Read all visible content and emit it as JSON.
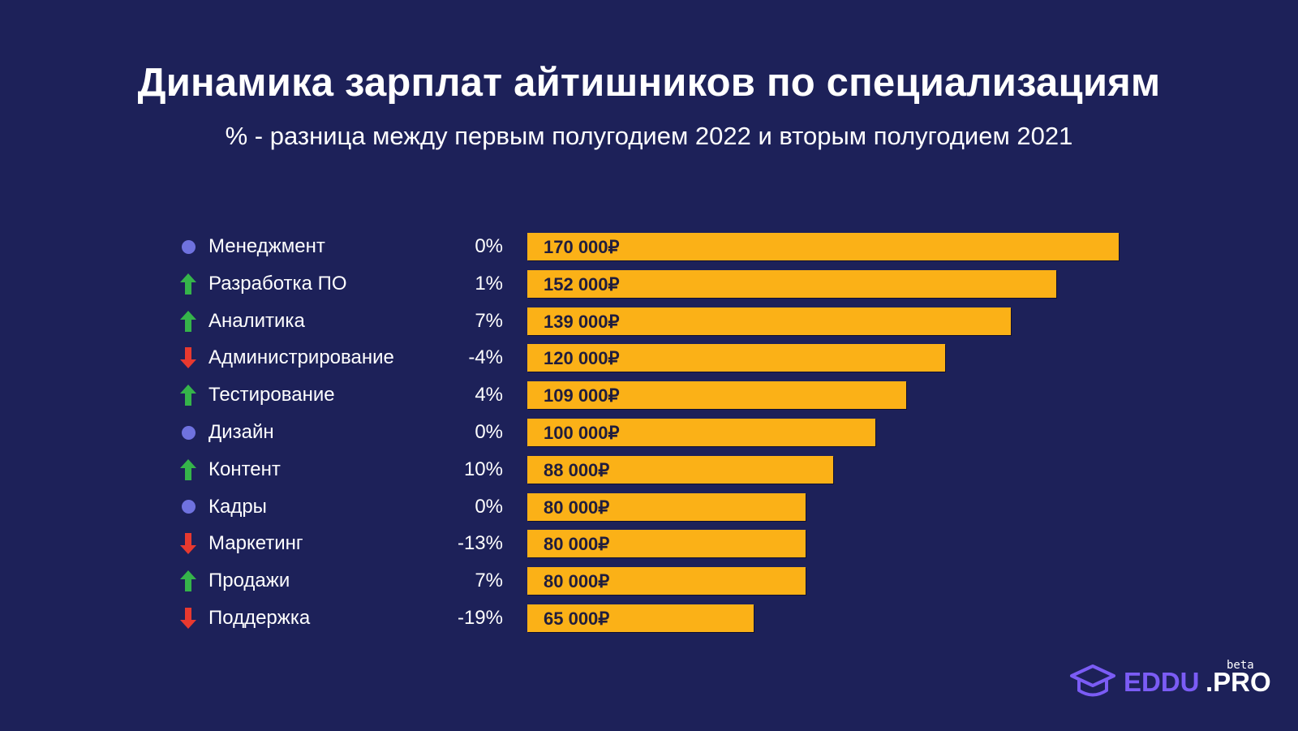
{
  "header": {
    "title": "Динамика зарплат айтишников по специализациям",
    "subtitle": "% - разница между первым полугодием 2022 и вторым полугодием 2021"
  },
  "colors": {
    "background": "#1d2159",
    "bar": "#fbb117",
    "bar_text": "#201d3d",
    "up": "#35b44a",
    "down": "#e8392f",
    "neutral": "#6f72df",
    "logo_accent": "#7b5cf5"
  },
  "chart_data": {
    "type": "bar",
    "orientation": "horizontal",
    "title": "Динамика зарплат айтишников по специализациям",
    "subtitle": "% - разница между первым полугодием 2022 и вторым полугодием 2021",
    "xlabel": "",
    "ylabel": "",
    "unit": "₽",
    "xlim": [
      0,
      170000
    ],
    "grid": false,
    "legend": "none",
    "categories": [
      "Менеджмент",
      "Разработка ПО",
      "Аналитика",
      "Администрирование",
      "Тестирование",
      "Дизайн",
      "Контент",
      "Кадры",
      "Маркетинг",
      "Продажи",
      "Поддержка"
    ],
    "values": [
      170000,
      152000,
      139000,
      120000,
      109000,
      100000,
      88000,
      80000,
      80000,
      80000,
      65000
    ],
    "value_labels": [
      "170 000₽",
      "152 000₽",
      "139 000₽",
      "120 000₽",
      "109 000₽",
      "100 000₽",
      "88 000₽",
      "80 000₽",
      "80 000₽",
      "80 000₽",
      "65 000₽"
    ],
    "change_pct": [
      0,
      1,
      7,
      -4,
      4,
      0,
      10,
      0,
      -13,
      7,
      -19
    ],
    "change_labels": [
      "0%",
      "1%",
      "7%",
      "-4%",
      "4%",
      "0%",
      "10%",
      "0%",
      "-13%",
      "7%",
      "-19%"
    ],
    "trend": [
      "neutral",
      "up",
      "up",
      "down",
      "up",
      "neutral",
      "up",
      "neutral",
      "down",
      "up",
      "down"
    ]
  },
  "icons": {
    "up": "arrow-up-icon",
    "down": "arrow-down-icon",
    "neutral": "dot-icon"
  },
  "logo": {
    "brand_a": "EDDU",
    "brand_b": ".PRO",
    "badge": "beta",
    "icon": "graduation-cap-icon"
  }
}
